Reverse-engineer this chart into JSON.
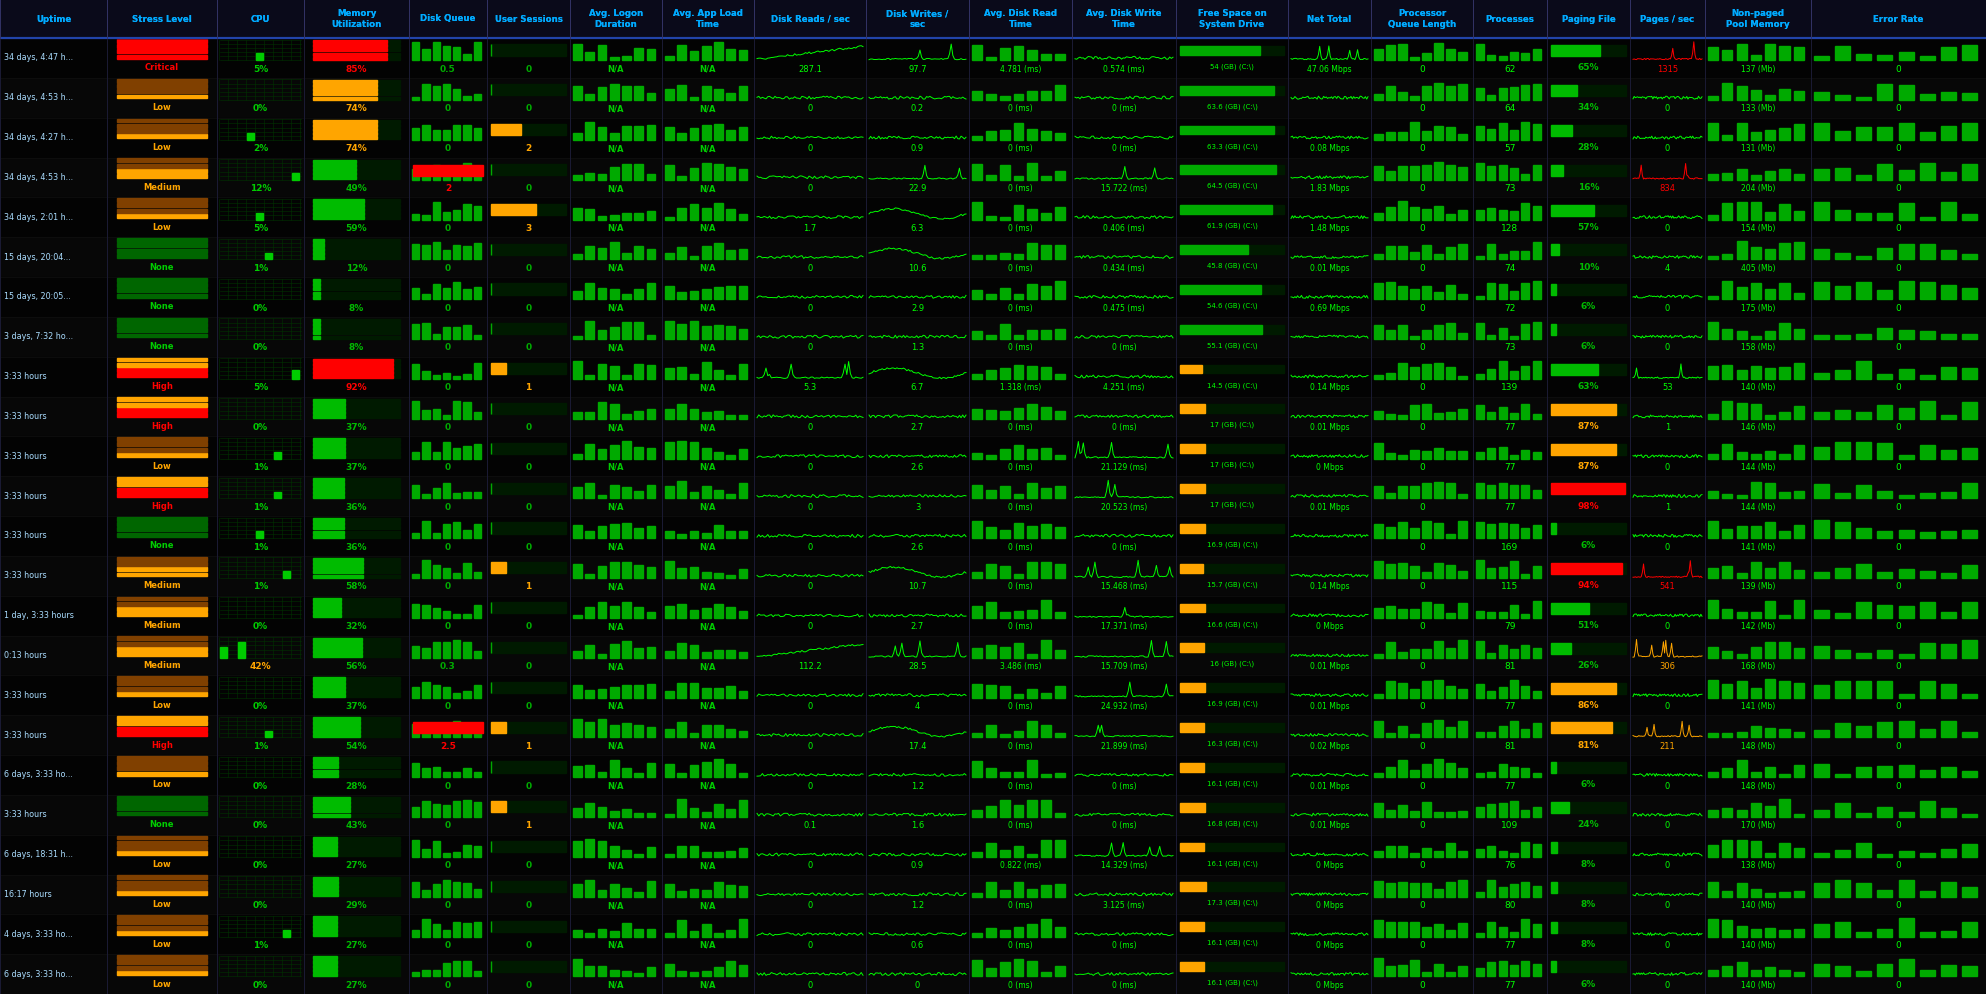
{
  "rows": [
    {
      "uptime": "34 days, 4:47 h...",
      "stress": "Critical",
      "cpu_pct": 5,
      "mem_pct": 85,
      "disk_queue": 0.5,
      "user_sessions": 0,
      "logon": "N/A",
      "appload": "N/A",
      "disk_reads": 287.1,
      "disk_writes": 97.7,
      "avg_read": "4.781 (ms)",
      "avg_write": "0.574 (ms)",
      "free_space": "54 (GB) (C:\\)",
      "net_total": "47.06 Mbps",
      "proc_queue": 0,
      "processes": 62,
      "paging": 65,
      "pages_sec": 1315,
      "nonpaged": "137 (Mb)",
      "error_rate": 0
    },
    {
      "uptime": "34 days, 4:53 h...",
      "stress": "Low",
      "cpu_pct": 0,
      "mem_pct": 74,
      "disk_queue": 0,
      "user_sessions": 0,
      "logon": "N/A",
      "appload": "N/A",
      "disk_reads": 0,
      "disk_writes": 0.2,
      "avg_read": "0 (ms)",
      "avg_write": "0 (ms)",
      "free_space": "63.6 (GB) (C:\\)",
      "net_total": "",
      "proc_queue": 0,
      "processes": 64,
      "paging": 34,
      "pages_sec": 0,
      "nonpaged": "133 (Mb)",
      "error_rate": 0
    },
    {
      "uptime": "34 days, 4:27 h...",
      "stress": "Low",
      "cpu_pct": 2,
      "mem_pct": 74,
      "disk_queue": 0,
      "user_sessions": 2,
      "logon": "N/A",
      "appload": "N/A",
      "disk_reads": 0,
      "disk_writes": 0.9,
      "avg_read": "0 (ms)",
      "avg_write": "0 (ms)",
      "free_space": "63.3 (GB) (C:\\)",
      "net_total": "0.08 Mbps",
      "proc_queue": 0,
      "processes": 57,
      "paging": 28,
      "pages_sec": 0,
      "nonpaged": "131 (Mb)",
      "error_rate": 0
    },
    {
      "uptime": "34 days, 4:53 h...",
      "stress": "Medium",
      "cpu_pct": 12,
      "mem_pct": 49,
      "disk_queue": 2,
      "user_sessions": 0,
      "logon": "N/A",
      "appload": "N/A",
      "disk_reads": 0,
      "disk_writes": 22.9,
      "avg_read": "0 (ms)",
      "avg_write": "15.722 (ms)",
      "free_space": "64.5 (GB) (C:\\)",
      "net_total": "1.83 Mbps",
      "proc_queue": 0,
      "processes": 73,
      "paging": 16,
      "pages_sec": 834,
      "nonpaged": "204 (Mb)",
      "error_rate": 0
    },
    {
      "uptime": "34 days, 2:01 h...",
      "stress": "Low",
      "cpu_pct": 5,
      "mem_pct": 59,
      "disk_queue": 0,
      "user_sessions": 3,
      "logon": "N/A",
      "appload": "N/A",
      "disk_reads": 1.7,
      "disk_writes": 6.3,
      "avg_read": "0 (ms)",
      "avg_write": "0.406 (ms)",
      "free_space": "61.9 (GB) (C:\\)",
      "net_total": "1.48 Mbps",
      "proc_queue": 0,
      "processes": 128,
      "paging": 57,
      "pages_sec": 0,
      "nonpaged": "154 (Mb)",
      "error_rate": 0
    },
    {
      "uptime": "15 days, 20:04...",
      "stress": "None",
      "cpu_pct": 1,
      "mem_pct": 12,
      "disk_queue": 0,
      "user_sessions": 0,
      "logon": "N/A",
      "appload": "N/A",
      "disk_reads": 0,
      "disk_writes": 10.6,
      "avg_read": "0 (ms)",
      "avg_write": "0.434 (ms)",
      "free_space": "45.8 (GB) (C:\\)",
      "net_total": "0.01 Mbps",
      "proc_queue": 0,
      "processes": 74,
      "paging": 10,
      "pages_sec": 4,
      "nonpaged": "405 (Mb)",
      "error_rate": 0
    },
    {
      "uptime": "15 days, 20:05...",
      "stress": "None",
      "cpu_pct": 0,
      "mem_pct": 8,
      "disk_queue": 0,
      "user_sessions": 0,
      "logon": "N/A",
      "appload": "N/A",
      "disk_reads": 0,
      "disk_writes": 2.9,
      "avg_read": "0 (ms)",
      "avg_write": "0.475 (ms)",
      "free_space": "54.6 (GB) (C:\\)",
      "net_total": "0.69 Mbps",
      "proc_queue": 0,
      "processes": 72,
      "paging": 6,
      "pages_sec": 0,
      "nonpaged": "175 (Mb)",
      "error_rate": 0
    },
    {
      "uptime": "3 days, 7:32 ho...",
      "stress": "None",
      "cpu_pct": 0,
      "mem_pct": 8,
      "disk_queue": 0,
      "user_sessions": 0,
      "logon": "N/A",
      "appload": "N/A",
      "disk_reads": 0,
      "disk_writes": 1.3,
      "avg_read": "0 (ms)",
      "avg_write": "0 (ms)",
      "free_space": "55.1 (GB) (C:\\)",
      "net_total": "",
      "proc_queue": 0,
      "processes": 73,
      "paging": 6,
      "pages_sec": 0,
      "nonpaged": "158 (Mb)",
      "error_rate": 0
    },
    {
      "uptime": "3:33 hours",
      "stress": "High",
      "cpu_pct": 5,
      "mem_pct": 92,
      "disk_queue": 0,
      "user_sessions": 1,
      "logon": "N/A",
      "appload": "N/A",
      "disk_reads": 5.3,
      "disk_writes": 6.7,
      "avg_read": "1.318 (ms)",
      "avg_write": "4.251 (ms)",
      "free_space": "14.5 (GB) (C:\\)",
      "net_total": "0.14 Mbps",
      "proc_queue": 0,
      "processes": 139,
      "paging": 63,
      "pages_sec": 53,
      "nonpaged": "140 (Mb)",
      "error_rate": 0
    },
    {
      "uptime": "3:33 hours",
      "stress": "High",
      "cpu_pct": 0,
      "mem_pct": 37,
      "disk_queue": 0,
      "user_sessions": 0,
      "logon": "N/A",
      "appload": "N/A",
      "disk_reads": 0,
      "disk_writes": 2.7,
      "avg_read": "0 (ms)",
      "avg_write": "0 (ms)",
      "free_space": "17 (GB) (C:\\)",
      "net_total": "0.01 Mbps",
      "proc_queue": 0,
      "processes": 77,
      "paging": 87,
      "pages_sec": 1,
      "nonpaged": "146 (Mb)",
      "error_rate": 0
    },
    {
      "uptime": "3:33 hours",
      "stress": "Low",
      "cpu_pct": 1,
      "mem_pct": 37,
      "disk_queue": 0,
      "user_sessions": 0,
      "logon": "N/A",
      "appload": "N/A",
      "disk_reads": 0,
      "disk_writes": 2.6,
      "avg_read": "0 (ms)",
      "avg_write": "21.129 (ms)",
      "free_space": "17 (GB) (C:\\)",
      "net_total": "0 Mbps",
      "proc_queue": 0,
      "processes": 77,
      "paging": 87,
      "pages_sec": 0,
      "nonpaged": "144 (Mb)",
      "error_rate": 0
    },
    {
      "uptime": "3:33 hours",
      "stress": "High",
      "cpu_pct": 1,
      "mem_pct": 36,
      "disk_queue": 0,
      "user_sessions": 0,
      "logon": "N/A",
      "appload": "N/A",
      "disk_reads": 0,
      "disk_writes": 3,
      "avg_read": "0 (ms)",
      "avg_write": "20.523 (ms)",
      "free_space": "17 (GB) (C:\\)",
      "net_total": "0.01 Mbps",
      "proc_queue": 0,
      "processes": 77,
      "paging": 98,
      "pages_sec": 1,
      "nonpaged": "144 (Mb)",
      "error_rate": 0
    },
    {
      "uptime": "3:33 hours",
      "stress": "None",
      "cpu_pct": 1,
      "mem_pct": 36,
      "disk_queue": 0,
      "user_sessions": 0,
      "logon": "N/A",
      "appload": "N/A",
      "disk_reads": 0,
      "disk_writes": 2.6,
      "avg_read": "0 (ms)",
      "avg_write": "0 (ms)",
      "free_space": "16.9 (GB) (C:\\)",
      "net_total": "",
      "proc_queue": 0,
      "processes": 169,
      "paging": 6,
      "pages_sec": 0,
      "nonpaged": "141 (Mb)",
      "error_rate": 0
    },
    {
      "uptime": "3:33 hours",
      "stress": "Medium",
      "cpu_pct": 1,
      "mem_pct": 58,
      "disk_queue": 0,
      "user_sessions": 1,
      "logon": "N/A",
      "appload": "N/A",
      "disk_reads": 0,
      "disk_writes": 10.7,
      "avg_read": "0 (ms)",
      "avg_write": "15.468 (ms)",
      "free_space": "15.7 (GB) (C:\\)",
      "net_total": "0.14 Mbps",
      "proc_queue": 0,
      "processes": 115,
      "paging": 94,
      "pages_sec": 541,
      "nonpaged": "139 (Mb)",
      "error_rate": 0
    },
    {
      "uptime": "1 day, 3:33 hours",
      "stress": "Medium",
      "cpu_pct": 0,
      "mem_pct": 32,
      "disk_queue": 0,
      "user_sessions": 0,
      "logon": "N/A",
      "appload": "N/A",
      "disk_reads": 0,
      "disk_writes": 2.7,
      "avg_read": "0 (ms)",
      "avg_write": "17.371 (ms)",
      "free_space": "16.6 (GB) (C:\\)",
      "net_total": "0 Mbps",
      "proc_queue": 0,
      "processes": 79,
      "paging": 51,
      "pages_sec": 0,
      "nonpaged": "142 (Mb)",
      "error_rate": 0
    },
    {
      "uptime": "0:13 hours",
      "stress": "Medium",
      "cpu_pct": 42,
      "mem_pct": 56,
      "disk_queue": 0.3,
      "user_sessions": 0,
      "logon": "N/A",
      "appload": "N/A",
      "disk_reads": 112.2,
      "disk_writes": 28.5,
      "avg_read": "3.486 (ms)",
      "avg_write": "15.709 (ms)",
      "free_space": "16 (GB) (C:\\)",
      "net_total": "0.01 Mbps",
      "proc_queue": 0,
      "processes": 81,
      "paging": 26,
      "pages_sec": 306,
      "nonpaged": "168 (Mb)",
      "error_rate": 0
    },
    {
      "uptime": "3:33 hours",
      "stress": "Low",
      "cpu_pct": 0,
      "mem_pct": 37,
      "disk_queue": 0,
      "user_sessions": 0,
      "logon": "N/A",
      "appload": "N/A",
      "disk_reads": 0,
      "disk_writes": 4,
      "avg_read": "0 (ms)",
      "avg_write": "24.932 (ms)",
      "free_space": "16.9 (GB) (C:\\)",
      "net_total": "0.01 Mbps",
      "proc_queue": 0,
      "processes": 77,
      "paging": 86,
      "pages_sec": 0,
      "nonpaged": "141 (Mb)",
      "error_rate": 0
    },
    {
      "uptime": "3:33 hours",
      "stress": "High",
      "cpu_pct": 1,
      "mem_pct": 54,
      "disk_queue": 2.5,
      "user_sessions": 1,
      "logon": "N/A",
      "appload": "N/A",
      "disk_reads": 0,
      "disk_writes": 17.4,
      "avg_read": "0 (ms)",
      "avg_write": "21.899 (ms)",
      "free_space": "16.3 (GB) (C:\\)",
      "net_total": "0.02 Mbps",
      "proc_queue": 0,
      "processes": 81,
      "paging": 81,
      "pages_sec": 211,
      "nonpaged": "148 (Mb)",
      "error_rate": 0
    },
    {
      "uptime": "6 days, 3:33 ho...",
      "stress": "Low",
      "cpu_pct": 0,
      "mem_pct": 28,
      "disk_queue": 0,
      "user_sessions": 0,
      "logon": "N/A",
      "appload": "N/A",
      "disk_reads": 0,
      "disk_writes": 1.2,
      "avg_read": "0 (ms)",
      "avg_write": "0 (ms)",
      "free_space": "16.1 (GB) (C:\\)",
      "net_total": "0.01 Mbps",
      "proc_queue": 0,
      "processes": 77,
      "paging": 6,
      "pages_sec": 0,
      "nonpaged": "148 (Mb)",
      "error_rate": 0
    },
    {
      "uptime": "3:33 hours",
      "stress": "None",
      "cpu_pct": 0,
      "mem_pct": 43,
      "disk_queue": 0,
      "user_sessions": 1,
      "logon": "N/A",
      "appload": "N/A",
      "disk_reads": 0.1,
      "disk_writes": 1.6,
      "avg_read": "0 (ms)",
      "avg_write": "0 (ms)",
      "free_space": "16.8 (GB) (C:\\)",
      "net_total": "0.01 Mbps",
      "proc_queue": 0,
      "processes": 109,
      "paging": 24,
      "pages_sec": 0,
      "nonpaged": "170 (Mb)",
      "error_rate": 0
    },
    {
      "uptime": "6 days, 18:31 h...",
      "stress": "Low",
      "cpu_pct": 0,
      "mem_pct": 27,
      "disk_queue": 0,
      "user_sessions": 0,
      "logon": "N/A",
      "appload": "N/A",
      "disk_reads": 0,
      "disk_writes": 0.9,
      "avg_read": "0.822 (ms)",
      "avg_write": "14.329 (ms)",
      "free_space": "16.1 (GB) (C:\\)",
      "net_total": "0 Mbps",
      "proc_queue": 0,
      "processes": 76,
      "paging": 8,
      "pages_sec": 0,
      "nonpaged": "138 (Mb)",
      "error_rate": 0
    },
    {
      "uptime": "16:17 hours",
      "stress": "Low",
      "cpu_pct": 0,
      "mem_pct": 29,
      "disk_queue": 0,
      "user_sessions": 0,
      "logon": "N/A",
      "appload": "N/A",
      "disk_reads": 0,
      "disk_writes": 1.2,
      "avg_read": "0 (ms)",
      "avg_write": "3.125 (ms)",
      "free_space": "17.3 (GB) (C:\\)",
      "net_total": "0 Mbps",
      "proc_queue": 0,
      "processes": 80,
      "paging": 8,
      "pages_sec": 0,
      "nonpaged": "140 (Mb)",
      "error_rate": 0
    },
    {
      "uptime": "4 days, 3:33 ho...",
      "stress": "Low",
      "cpu_pct": 1,
      "mem_pct": 27,
      "disk_queue": 0,
      "user_sessions": 0,
      "logon": "N/A",
      "appload": "N/A",
      "disk_reads": 0,
      "disk_writes": 0.6,
      "avg_read": "0 (ms)",
      "avg_write": "0 (ms)",
      "free_space": "16.1 (GB) (C:\\)",
      "net_total": "0 Mbps",
      "proc_queue": 0,
      "processes": 77,
      "paging": 8,
      "pages_sec": 0,
      "nonpaged": "140 (Mb)",
      "error_rate": 0
    },
    {
      "uptime": "6 days, 3:33 ho...",
      "stress": "Low",
      "cpu_pct": 0,
      "mem_pct": 27,
      "disk_queue": 0,
      "user_sessions": 0,
      "logon": "N/A",
      "appload": "N/A",
      "disk_reads": 0,
      "disk_writes": 0,
      "avg_read": "0 (ms)",
      "avg_write": "0 (ms)",
      "free_space": "16.1 (GB) (C:\\)",
      "net_total": "0 Mbps",
      "proc_queue": 0,
      "processes": 77,
      "paging": 6,
      "pages_sec": 0,
      "nonpaged": "140 (Mb)",
      "error_rate": 0
    }
  ],
  "stress_colors": {
    "Critical": "#ff0000",
    "High": "#ff0000",
    "Medium": "#ffa500",
    "Low": "#ffa500",
    "None": "#00cc00"
  },
  "stress_stripe_colors": {
    "Critical": [
      "#ff0000",
      "#ff0000",
      "#ff0000",
      "#ff0000"
    ],
    "High": [
      "#ff0000",
      "#ff0000",
      "#ffa500",
      "#ffa500"
    ],
    "Medium": [
      "#ffa500",
      "#ffa500",
      "#804000",
      "#804000"
    ],
    "Low": [
      "#ffa500",
      "#804000",
      "#804000",
      "#804000"
    ],
    "None": [
      "#006600",
      "#006600",
      "#006600",
      "#006600"
    ]
  }
}
